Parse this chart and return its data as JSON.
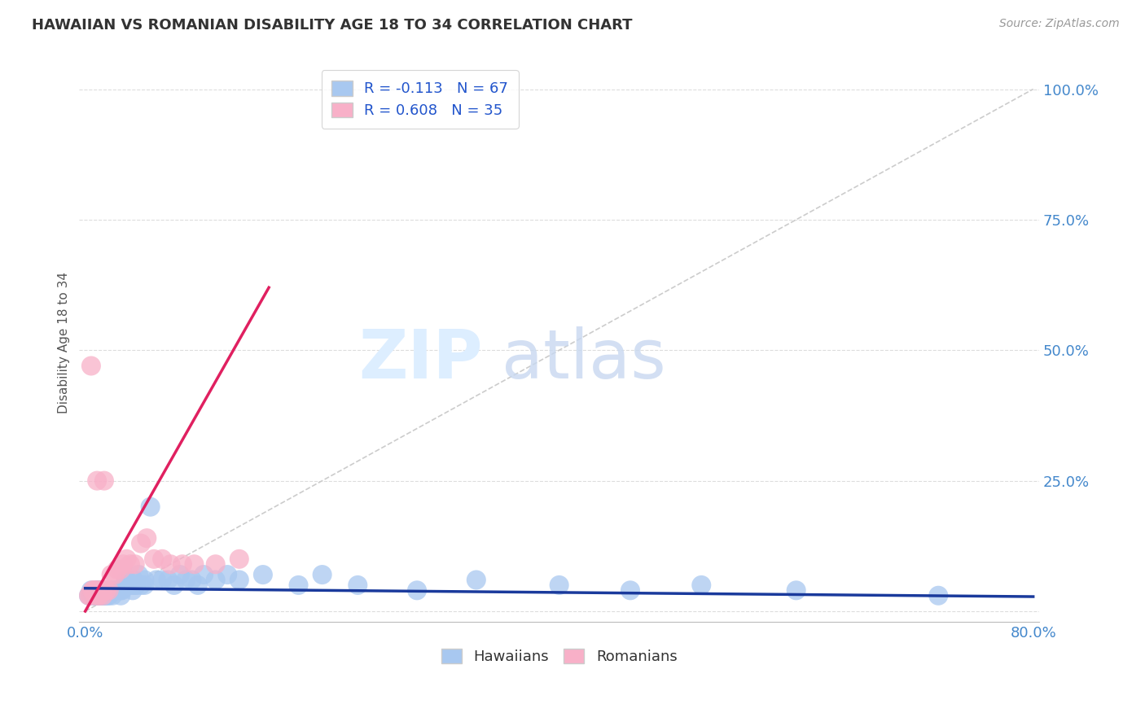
{
  "title": "HAWAIIAN VS ROMANIAN DISABILITY AGE 18 TO 34 CORRELATION CHART",
  "source": "Source: ZipAtlas.com",
  "ylabel": "Disability Age 18 to 34",
  "xlim": [
    -0.005,
    0.805
  ],
  "ylim": [
    -0.02,
    1.05
  ],
  "ytick_vals": [
    0.0,
    0.25,
    0.5,
    0.75,
    1.0
  ],
  "ytick_labels": [
    "",
    "25.0%",
    "50.0%",
    "75.0%",
    "100.0%"
  ],
  "xtick_vals": [
    0.0,
    0.1,
    0.2,
    0.3,
    0.4,
    0.5,
    0.6,
    0.7,
    0.8
  ],
  "xtick_labels": [
    "0.0%",
    "",
    "",
    "",
    "",
    "",
    "",
    "",
    "80.0%"
  ],
  "legend_r_hawaiian": "R = -0.113",
  "legend_n_hawaiian": "N = 67",
  "legend_r_romanian": "R = 0.608",
  "legend_n_romanian": "N = 35",
  "hawaiian_color": "#a8c8f0",
  "romanian_color": "#f8b0c8",
  "hawaiian_line_color": "#1a3a9c",
  "romanian_line_color": "#e02060",
  "watermark_zip": "ZIP",
  "watermark_atlas": "atlas",
  "title_color": "#333333",
  "axis_label_color": "#4488cc",
  "legend_text_color": "#2255cc",
  "grid_color": "#dddddd",
  "ref_line_color": "#cccccc",
  "hawaiians_x": [
    0.003,
    0.005,
    0.005,
    0.007,
    0.008,
    0.009,
    0.01,
    0.01,
    0.01,
    0.012,
    0.012,
    0.013,
    0.013,
    0.014,
    0.015,
    0.015,
    0.016,
    0.017,
    0.018,
    0.019,
    0.02,
    0.02,
    0.021,
    0.022,
    0.023,
    0.025,
    0.026,
    0.028,
    0.03,
    0.03,
    0.031,
    0.033,
    0.035,
    0.037,
    0.04,
    0.04,
    0.041,
    0.042,
    0.043,
    0.045,
    0.047,
    0.05,
    0.05,
    0.055,
    0.06,
    0.065,
    0.07,
    0.075,
    0.08,
    0.085,
    0.09,
    0.095,
    0.1,
    0.11,
    0.12,
    0.13,
    0.15,
    0.18,
    0.2,
    0.23,
    0.28,
    0.33,
    0.4,
    0.46,
    0.52,
    0.6,
    0.72
  ],
  "hawaiians_y": [
    0.03,
    0.03,
    0.04,
    0.03,
    0.03,
    0.04,
    0.03,
    0.04,
    0.03,
    0.03,
    0.04,
    0.03,
    0.04,
    0.03,
    0.03,
    0.04,
    0.03,
    0.03,
    0.04,
    0.03,
    0.04,
    0.03,
    0.04,
    0.04,
    0.03,
    0.04,
    0.04,
    0.04,
    0.04,
    0.03,
    0.04,
    0.05,
    0.06,
    0.05,
    0.05,
    0.04,
    0.06,
    0.05,
    0.05,
    0.07,
    0.05,
    0.06,
    0.05,
    0.2,
    0.06,
    0.06,
    0.06,
    0.05,
    0.07,
    0.06,
    0.06,
    0.05,
    0.07,
    0.06,
    0.07,
    0.06,
    0.07,
    0.05,
    0.07,
    0.05,
    0.04,
    0.06,
    0.05,
    0.04,
    0.05,
    0.04,
    0.03
  ],
  "romanians_x": [
    0.003,
    0.004,
    0.005,
    0.006,
    0.007,
    0.008,
    0.009,
    0.01,
    0.01,
    0.011,
    0.012,
    0.013,
    0.014,
    0.015,
    0.016,
    0.017,
    0.018,
    0.02,
    0.022,
    0.025,
    0.027,
    0.03,
    0.032,
    0.035,
    0.038,
    0.042,
    0.047,
    0.052,
    0.058,
    0.065,
    0.072,
    0.082,
    0.092,
    0.11,
    0.13
  ],
  "romanians_y": [
    0.03,
    0.03,
    0.47,
    0.04,
    0.04,
    0.03,
    0.04,
    0.25,
    0.04,
    0.03,
    0.03,
    0.04,
    0.04,
    0.03,
    0.25,
    0.04,
    0.04,
    0.04,
    0.07,
    0.07,
    0.08,
    0.08,
    0.09,
    0.1,
    0.09,
    0.09,
    0.13,
    0.14,
    0.1,
    0.1,
    0.09,
    0.09,
    0.09,
    0.09,
    0.1
  ],
  "romanian_line_x": [
    0.0,
    0.155
  ],
  "romanian_line_y": [
    0.0,
    0.62
  ],
  "hawaiian_line_x": [
    0.0,
    0.8
  ],
  "hawaiian_line_y": [
    0.044,
    0.028
  ]
}
